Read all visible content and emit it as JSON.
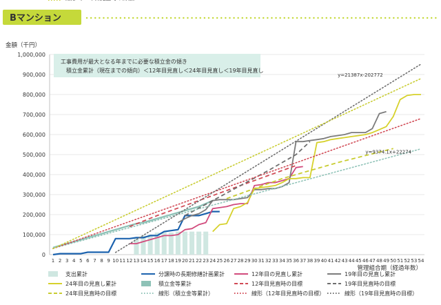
{
  "header": {
    "title": "Bマンション"
  },
  "colors": {
    "header_bg": "#c5d93a",
    "header_text": "#2a2a2a",
    "header_dots": "#c5d93a",
    "bars": "#cfe7e1",
    "plan": "#1b62ae",
    "r12": "#d14a7c",
    "r19": "#7b7b7b",
    "r24": "#d6d12b",
    "reserve": "#8ec2b7",
    "target12": "#d14a55",
    "target19": "#6e6e6e",
    "target24": "#c8cc30",
    "note_bg": "#d9efe9"
  },
  "chart_data": {
    "type": "line",
    "title": "Bマンション",
    "ylabel": "金額（千円）",
    "xlabel": "管理組合期（経過年数）",
    "ylim": [
      0,
      1000000
    ],
    "yticks": [
      0,
      100000,
      200000,
      300000,
      400000,
      500000,
      600000,
      700000,
      800000,
      900000,
      1000000
    ],
    "ytick_labels": [
      "0",
      "100,000",
      "200,000",
      "300,000",
      "400,000",
      "500,000",
      "600,000",
      "700,000",
      "800,000",
      "900,000",
      "1,000,000"
    ],
    "x": [
      1,
      2,
      3,
      4,
      5,
      6,
      7,
      8,
      9,
      10,
      11,
      12,
      13,
      14,
      15,
      16,
      17,
      18,
      19,
      20,
      21,
      22,
      23,
      24,
      25,
      26,
      27,
      28,
      29,
      30,
      31,
      32,
      33,
      34,
      35,
      36,
      37,
      38,
      39,
      40,
      41,
      42,
      43,
      44,
      45,
      46,
      47,
      48,
      49,
      50,
      51,
      52,
      53,
      54
    ],
    "note": {
      "line1": "工事費用が最大となる年までに必要な積立金の傾き",
      "line2": "積立金累計（現在までの傾向）＜12年目見直し＜24年目見直し＜19年目見直し"
    },
    "annotations": [
      {
        "text": "y=21387x-202772",
        "x": 42,
        "y": 890000
      },
      {
        "text": "y=9374.1x+22274",
        "x": 46,
        "y": 505000
      }
    ],
    "bars": {
      "name": "支出累計",
      "x": [
        13,
        14,
        15,
        16,
        17,
        18,
        19,
        20,
        21,
        22,
        23
      ],
      "values": [
        80000,
        95000,
        100000,
        110000,
        110000,
        110000,
        115000,
        115000,
        115000,
        115000,
        115000
      ]
    },
    "series": [
      {
        "key": "plan",
        "name": "分譲時の長期修繕計画累計",
        "style": "solid",
        "width": 2.2,
        "points": [
          [
            1,
            0
          ],
          [
            2,
            5000
          ],
          [
            3,
            5000
          ],
          [
            4,
            5000
          ],
          [
            5,
            5000
          ],
          [
            6,
            12000
          ],
          [
            7,
            12000
          ],
          [
            8,
            12000
          ],
          [
            9,
            12000
          ],
          [
            10,
            80000
          ],
          [
            11,
            80000
          ],
          [
            12,
            80000
          ],
          [
            13,
            85000
          ],
          [
            14,
            85000
          ],
          [
            15,
            95000
          ],
          [
            16,
            95000
          ],
          [
            17,
            115000
          ],
          [
            18,
            120000
          ],
          [
            19,
            125000
          ],
          [
            20,
            195000
          ],
          [
            21,
            195000
          ],
          [
            22,
            195000
          ],
          [
            23,
            205000
          ],
          [
            24,
            215000
          ],
          [
            25,
            215000
          ]
        ]
      },
      {
        "key": "r12",
        "name": "12年目の見直し累計",
        "style": "solid",
        "width": 1.8,
        "points": [
          [
            12,
            55000
          ],
          [
            13,
            55000
          ],
          [
            14,
            65000
          ],
          [
            15,
            75000
          ],
          [
            16,
            85000
          ],
          [
            17,
            95000
          ],
          [
            18,
            95000
          ],
          [
            19,
            100000
          ],
          [
            20,
            125000
          ],
          [
            21,
            130000
          ],
          [
            22,
            150000
          ],
          [
            23,
            160000
          ],
          [
            24,
            230000
          ],
          [
            25,
            235000
          ],
          [
            26,
            240000
          ],
          [
            27,
            250000
          ],
          [
            28,
            255000
          ],
          [
            29,
            255000
          ],
          [
            30,
            345000
          ],
          [
            31,
            350000
          ],
          [
            32,
            360000
          ],
          [
            33,
            360000
          ],
          [
            34,
            370000
          ],
          [
            35,
            380000
          ],
          [
            36,
            435000
          ],
          [
            37,
            440000
          ]
        ]
      },
      {
        "key": "r19",
        "name": "19年目の見直し累計",
        "style": "solid",
        "width": 1.8,
        "points": [
          [
            19,
            160000
          ],
          [
            20,
            180000
          ],
          [
            21,
            195000
          ],
          [
            22,
            205000
          ],
          [
            23,
            225000
          ],
          [
            24,
            270000
          ],
          [
            25,
            275000
          ],
          [
            26,
            275000
          ],
          [
            27,
            275000
          ],
          [
            28,
            280000
          ],
          [
            29,
            285000
          ],
          [
            30,
            325000
          ],
          [
            31,
            325000
          ],
          [
            32,
            330000
          ],
          [
            33,
            330000
          ],
          [
            34,
            340000
          ],
          [
            35,
            360000
          ],
          [
            36,
            565000
          ],
          [
            37,
            565000
          ],
          [
            38,
            570000
          ],
          [
            39,
            575000
          ],
          [
            40,
            580000
          ],
          [
            41,
            590000
          ],
          [
            42,
            595000
          ],
          [
            43,
            600000
          ],
          [
            44,
            610000
          ],
          [
            45,
            610000
          ],
          [
            46,
            610000
          ],
          [
            47,
            630000
          ],
          [
            48,
            705000
          ],
          [
            49,
            715000
          ]
        ]
      },
      {
        "key": "r24",
        "name": "24年目の見直し累計",
        "style": "solid",
        "width": 1.8,
        "points": [
          [
            24,
            115000
          ],
          [
            25,
            150000
          ],
          [
            26,
            155000
          ],
          [
            27,
            230000
          ],
          [
            28,
            240000
          ],
          [
            29,
            260000
          ],
          [
            30,
            330000
          ],
          [
            31,
            335000
          ],
          [
            32,
            340000
          ],
          [
            33,
            345000
          ],
          [
            34,
            360000
          ],
          [
            35,
            380000
          ],
          [
            36,
            380000
          ],
          [
            37,
            385000
          ],
          [
            38,
            385000
          ],
          [
            39,
            560000
          ],
          [
            40,
            565000
          ],
          [
            41,
            575000
          ],
          [
            42,
            580000
          ],
          [
            43,
            585000
          ],
          [
            44,
            590000
          ],
          [
            45,
            595000
          ],
          [
            46,
            600000
          ],
          [
            47,
            610000
          ],
          [
            48,
            625000
          ],
          [
            49,
            640000
          ],
          [
            50,
            690000
          ],
          [
            51,
            775000
          ],
          [
            52,
            795000
          ],
          [
            53,
            800000
          ],
          [
            54,
            800000
          ]
        ]
      },
      {
        "key": "reserve",
        "name": "積立金等累計",
        "style": "solid",
        "width": 2.4,
        "points": [
          [
            1,
            35000
          ],
          [
            2,
            45000
          ],
          [
            3,
            55000
          ],
          [
            4,
            65000
          ],
          [
            5,
            75000
          ],
          [
            6,
            85000
          ],
          [
            7,
            95000
          ],
          [
            8,
            105000
          ],
          [
            9,
            115000
          ],
          [
            10,
            125000
          ],
          [
            11,
            135000
          ],
          [
            12,
            145000
          ],
          [
            13,
            155000
          ],
          [
            14,
            160000
          ],
          [
            15,
            170000
          ],
          [
            16,
            180000
          ],
          [
            17,
            190000
          ],
          [
            18,
            200000
          ],
          [
            19,
            210000
          ],
          [
            20,
            220000
          ],
          [
            21,
            230000
          ],
          [
            22,
            240000
          ],
          [
            23,
            255000
          ],
          [
            24,
            270000
          ]
        ]
      },
      {
        "key": "target12",
        "name": "12年目見直時の目標",
        "style": "dash",
        "width": 1.8,
        "points": [
          [
            12,
            140000
          ],
          [
            16,
            195000
          ],
          [
            20,
            245000
          ],
          [
            24,
            295000
          ],
          [
            28,
            345000
          ],
          [
            32,
            395000
          ],
          [
            36,
            445000
          ]
        ]
      },
      {
        "key": "target19",
        "name": "19年目見直時の目標",
        "style": "dash",
        "width": 1.8,
        "points": [
          [
            20,
            195000
          ],
          [
            24,
            270000
          ],
          [
            28,
            345000
          ],
          [
            32,
            420000
          ],
          [
            36,
            500000
          ],
          [
            38,
            565000
          ]
        ]
      },
      {
        "key": "target24",
        "name": "24年目見直時の目標",
        "style": "dash",
        "width": 1.8,
        "points": [
          [
            26,
            280000
          ],
          [
            30,
            330000
          ],
          [
            34,
            380000
          ],
          [
            38,
            420000
          ],
          [
            42,
            460000
          ],
          [
            46,
            495000
          ],
          [
            50,
            530000
          ]
        ]
      },
      {
        "key": "trend_reserve",
        "name": "線形（積立金等累計）",
        "style": "dot",
        "width": 1.6,
        "color_key": "reserve",
        "points": [
          [
            1,
            31648
          ],
          [
            54,
            528487
          ]
        ]
      },
      {
        "key": "trend12",
        "name": "線形（12年目見直時の目標）",
        "style": "dot",
        "width": 1.6,
        "color_key": "target12",
        "points": [
          [
            1,
            30000
          ],
          [
            54,
            680000
          ]
        ]
      },
      {
        "key": "trend19",
        "name": "線形（19年目見直時の目標）",
        "style": "dot",
        "width": 1.6,
        "color_key": "target19",
        "points": [
          [
            10,
            11098
          ],
          [
            54,
            952126
          ]
        ]
      },
      {
        "key": "trend24",
        "name": "線形（24年目見直時の目標）",
        "style": "dot",
        "width": 1.6,
        "color_key": "target24",
        "points": [
          [
            1,
            30000
          ],
          [
            54,
            880000
          ]
        ]
      }
    ],
    "legend": [
      {
        "key": "bars",
        "label": "支出累計",
        "type": "bar",
        "color_key": "bars"
      },
      {
        "key": "plan",
        "label": "分譲時の長期修繕計画累計",
        "type": "line",
        "style": "solid",
        "color_key": "plan"
      },
      {
        "key": "r12",
        "label": "12年目の見直し累計",
        "type": "line",
        "style": "solid",
        "color_key": "r12"
      },
      {
        "key": "r19",
        "label": "19年目の見直し累計",
        "type": "line",
        "style": "solid",
        "color_key": "r19"
      },
      {
        "key": "r24",
        "label": "24年目の見直し累計",
        "type": "line",
        "style": "solid",
        "color_key": "r24"
      },
      {
        "key": "reserve",
        "label": "積立金等累計",
        "type": "bar",
        "color_key": "reserve"
      },
      {
        "key": "target12",
        "label": "12年目見直時の目標",
        "type": "line",
        "style": "dash",
        "color_key": "target12"
      },
      {
        "key": "target19",
        "label": "19年目見直時の目標",
        "type": "line",
        "style": "dash",
        "color_key": "target19"
      },
      {
        "key": "target24",
        "label": "24年目見直時の目標",
        "type": "line",
        "style": "dash",
        "color_key": "target24"
      },
      {
        "key": "trend_reserve",
        "label": "線形（積立金等累計）",
        "type": "line",
        "style": "dot",
        "color_key": "reserve"
      },
      {
        "key": "trend12",
        "label": "線形（12年目見直時の目標）",
        "type": "line",
        "style": "dot",
        "color_key": "target12"
      },
      {
        "key": "trend19",
        "label": "線形（19年目見直時の目標）",
        "type": "line",
        "style": "dot",
        "color_key": "target19"
      },
      {
        "key": "trend24",
        "label": "線形（24年目見直時の目標）",
        "type": "line",
        "style": "dot",
        "color_key": "target24"
      }
    ]
  }
}
